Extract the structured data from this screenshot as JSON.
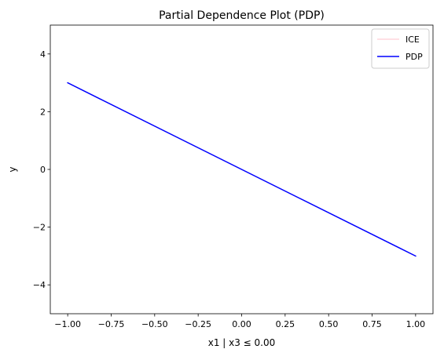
{
  "chart_data": {
    "type": "line",
    "title": "Partial Dependence Plot (PDP)",
    "xlabel": "x1 | x3 ≤ 0.00",
    "ylabel": "y",
    "xlim": [
      -1.1,
      1.1
    ],
    "ylim": [
      -5,
      5
    ],
    "x_ticks": [
      -1.0,
      -0.75,
      -0.5,
      -0.25,
      0.0,
      0.25,
      0.5,
      0.75,
      1.0
    ],
    "x_tick_labels": [
      "−1.00",
      "−0.75",
      "−0.50",
      "−0.25",
      "0.00",
      "0.25",
      "0.50",
      "0.75",
      "1.00"
    ],
    "y_ticks": [
      -4,
      -2,
      0,
      2,
      4
    ],
    "y_tick_labels": [
      "−4",
      "−2",
      "0",
      "2",
      "4"
    ],
    "grid": false,
    "legend_position": "top-right",
    "series": [
      {
        "name": "ICE",
        "color": "#ffc0cb",
        "x": [
          -1.0,
          1.0
        ],
        "values": [
          3.0,
          -3.0
        ]
      },
      {
        "name": "PDP",
        "color": "#0000ff",
        "x": [
          -1.0,
          1.0
        ],
        "values": [
          3.0,
          -3.0
        ]
      }
    ]
  }
}
